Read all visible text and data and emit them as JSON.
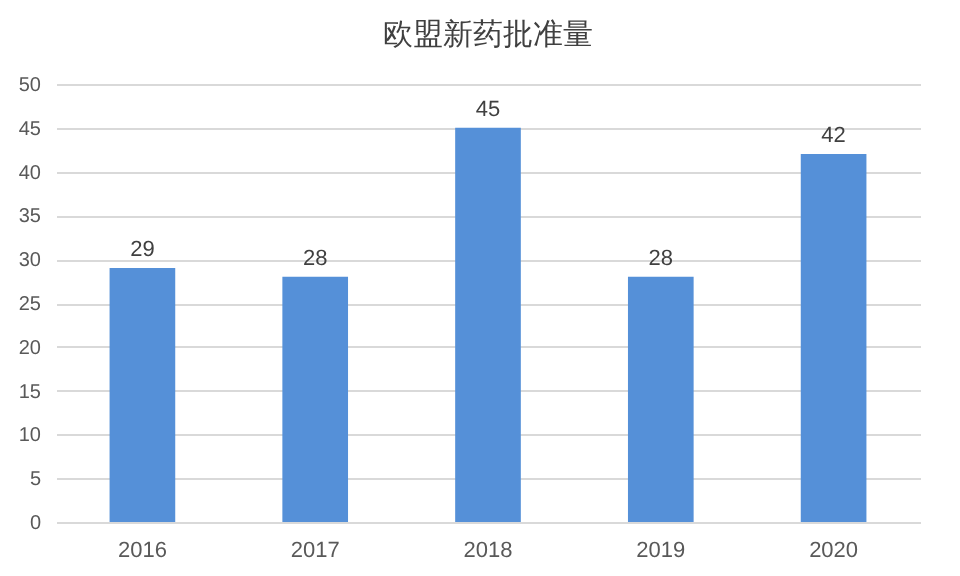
{
  "chart_data": {
    "type": "bar",
    "title": "欧盟新药批准量",
    "categories": [
      "2016",
      "2017",
      "2018",
      "2019",
      "2020"
    ],
    "values": [
      29,
      28,
      45,
      28,
      42
    ],
    "color": "#5590d8",
    "ylim": [
      0,
      50
    ],
    "yticks": [
      0,
      5,
      10,
      15,
      20,
      25,
      30,
      35,
      40,
      45,
      50
    ],
    "grid": "y",
    "data_labels": true
  }
}
